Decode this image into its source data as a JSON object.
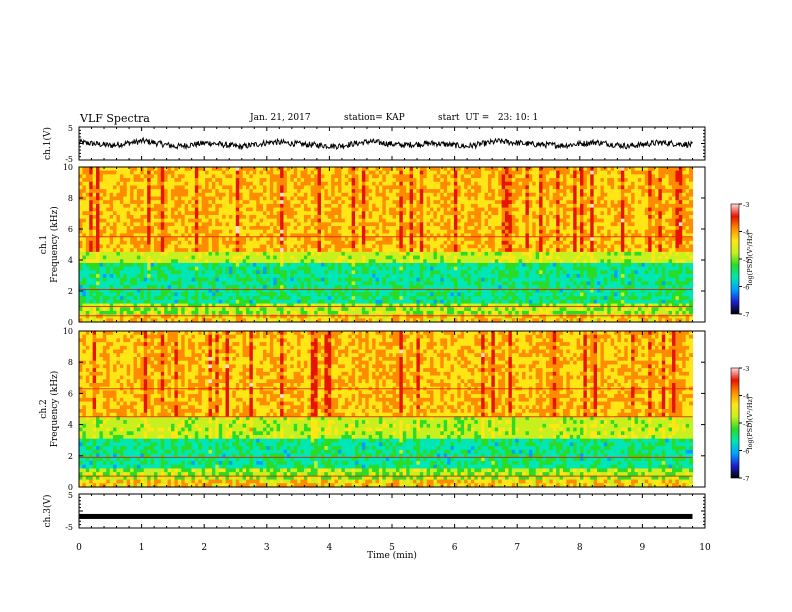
{
  "header": {
    "title": "VLF Spectra",
    "date": "Jan. 21, 2017",
    "station": "station= KAP",
    "start": "start  UT =   23: 10: 1"
  },
  "chart_data": [
    {
      "type": "line",
      "panel": "ch1-waveform",
      "ylabel": "ch.1(V)",
      "ylim": [
        -5,
        5
      ],
      "yticks": [
        "5",
        "-5"
      ],
      "xlim": [
        0,
        10
      ],
      "series": [
        {
          "values": [
            0.4,
            -0.6,
            0.8,
            -0.9,
            0.2,
            -1.0,
            0.5,
            -0.3,
            -0.8,
            0.6,
            -0.5,
            0.1,
            -0.9,
            0.7,
            -0.2,
            -0.6,
            0.4,
            -0.8,
            0.3,
            -0.4
          ]
        }
      ]
    },
    {
      "type": "heatmap",
      "panel": "ch1-spectrogram",
      "ylabel": "ch.1\nFrequency (kHz)",
      "ylabel_lines": [
        "ch.1",
        "Frequency (kHz)"
      ],
      "ylim": [
        0,
        10
      ],
      "yticks": [
        "0",
        "2",
        "4",
        "6",
        "8",
        "10"
      ],
      "xlim": [
        0,
        10
      ],
      "colorbar": {
        "label": "log(PSD)(V²/Hz)",
        "range": [
          -7,
          -3
        ],
        "ticks": [
          "-3",
          "-4",
          "-5",
          "-6",
          "-7"
        ]
      }
    },
    {
      "type": "heatmap",
      "panel": "ch2-spectrogram",
      "ylabel_lines": [
        "ch.2",
        "Frequency (kHz)"
      ],
      "ylim": [
        0,
        10
      ],
      "yticks": [
        "0",
        "2",
        "4",
        "6",
        "8",
        "10"
      ],
      "xlim": [
        0,
        10
      ],
      "colorbar": {
        "label": "log(PSD)(V²/Hz)",
        "range": [
          -7,
          -3
        ],
        "ticks": [
          "-3",
          "-4",
          "-5",
          "-6",
          "-7"
        ]
      }
    },
    {
      "type": "line",
      "panel": "ch3-waveform",
      "ylabel": "ch.3(V)",
      "ylim": [
        -5,
        5
      ],
      "yticks": [
        "5",
        "-5"
      ],
      "xlim": [
        0,
        10
      ],
      "series": [
        {
          "values": [
            -1.6,
            -1.6
          ]
        }
      ]
    }
  ],
  "xaxis": {
    "label": "Time (min)",
    "range": [
      0,
      10
    ],
    "data_end": 9.8,
    "ticks": [
      "0",
      "1",
      "2",
      "3",
      "4",
      "5",
      "6",
      "7",
      "8",
      "9",
      "10"
    ]
  },
  "colors": {
    "colormap": [
      "#000000",
      "#1e1ed2",
      "#00a0ff",
      "#00e6b4",
      "#28dc28",
      "#c8f01e",
      "#ffe614",
      "#ff8c00",
      "#e61400",
      "#ffdcdc"
    ]
  }
}
